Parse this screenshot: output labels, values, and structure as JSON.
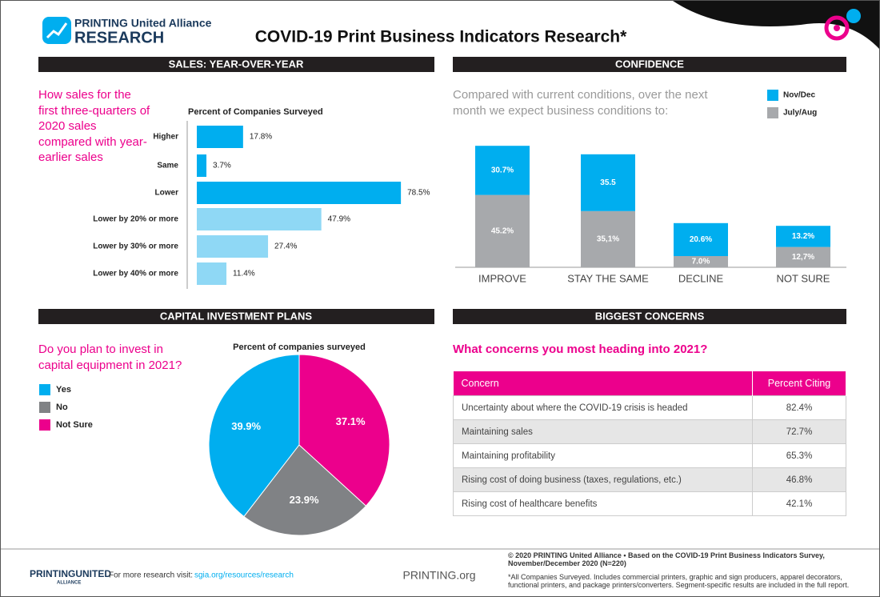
{
  "header": {
    "logo_line1": "PRINTING United Alliance",
    "logo_line2": "RESEARCH",
    "title": "COVID-19 Print Business Indicators Research*"
  },
  "chart_data": [
    {
      "type": "hbar",
      "section": "SALES: YEAR-OVER-YEAR",
      "question": "How sales for the first three-quarters of 2020 sales compared with year-earlier sales",
      "axis_label": "Percent of Companies Surveyed",
      "categories": [
        "Higher",
        "Same",
        "Lower",
        "Lower by 20% or more",
        "Lower by 30% or more",
        "Lower by 40% or more"
      ],
      "values": [
        17.8,
        3.7,
        78.5,
        47.9,
        27.4,
        11.4
      ],
      "value_labels": [
        "17.8%",
        "3.7%",
        "78.5%",
        "47.9%",
        "27.4%",
        "11.4%"
      ],
      "colors": [
        "#00aeef",
        "#00aeef",
        "#00aeef",
        "#8fd8f5",
        "#8fd8f5",
        "#8fd8f5"
      ]
    },
    {
      "type": "stacked",
      "section": "CONFIDENCE",
      "subtitle": "Compared with current conditions, over the next month we expect business conditions to:",
      "categories": [
        "IMPROVE",
        "STAY THE SAME",
        "DECLINE",
        "NOT SURE"
      ],
      "series": [
        {
          "name": "Nov/Dec",
          "color": "#00aeef",
          "values": [
            30.7,
            35.5,
            20.6,
            13.2
          ],
          "value_labels": [
            "30.7%",
            "35.5",
            "20.6%",
            "13.2%"
          ]
        },
        {
          "name": "July/Aug",
          "color": "#a7a9ac",
          "values": [
            45.2,
            35.1,
            7.0,
            12.7
          ],
          "value_labels": [
            "45.2%",
            "35,1%",
            "7.0%",
            "12,7%"
          ]
        }
      ]
    },
    {
      "type": "pie",
      "section": "CAPITAL INVESTMENT PLANS",
      "question": "Do you plan to invest in capital equipment in 2021?",
      "axis_label": "Percent of companies surveyed",
      "categories": [
        "Yes",
        "No",
        "Not Sure"
      ],
      "values": [
        39.9,
        23.9,
        37.1
      ],
      "value_labels": [
        "39.9%",
        "23.9%",
        "37.1%"
      ],
      "colors": [
        "#00aeef",
        "#808285",
        "#ec008c"
      ]
    }
  ],
  "concerns": {
    "section": "BIGGEST CONCERNS",
    "question": "What concerns you most heading into 2021?",
    "columns": [
      "Concern",
      "Percent Citing"
    ],
    "rows": [
      [
        "Uncertainty about where the COVID-19 crisis is headed",
        "82.4%"
      ],
      [
        "Maintaining sales",
        "72.7%"
      ],
      [
        "Maintaining profitability",
        "65.3%"
      ],
      [
        "Rising cost of doing business (taxes, regulations, etc.)",
        "46.8%"
      ],
      [
        "Rising cost of healthcare benefits",
        "42.1%"
      ]
    ]
  },
  "footer": {
    "logo": "PRINTINGUNITED",
    "logo_sub": "ALLIANCE",
    "visit": "For more research visit:",
    "link": "sgia.org/resources/research",
    "site": "PRINTING.org",
    "copyright": "© 2020 PRINTING United Alliance • Based on the COVID-19 Print Business Indicators Survey, November/December 2020 (N=220)",
    "note": "*All Companies Surveyed. Includes commercial printers, graphic and sign producers, apparel decorators, functional printers, and package printers/converters. Segment-specific results are included in the full report."
  }
}
